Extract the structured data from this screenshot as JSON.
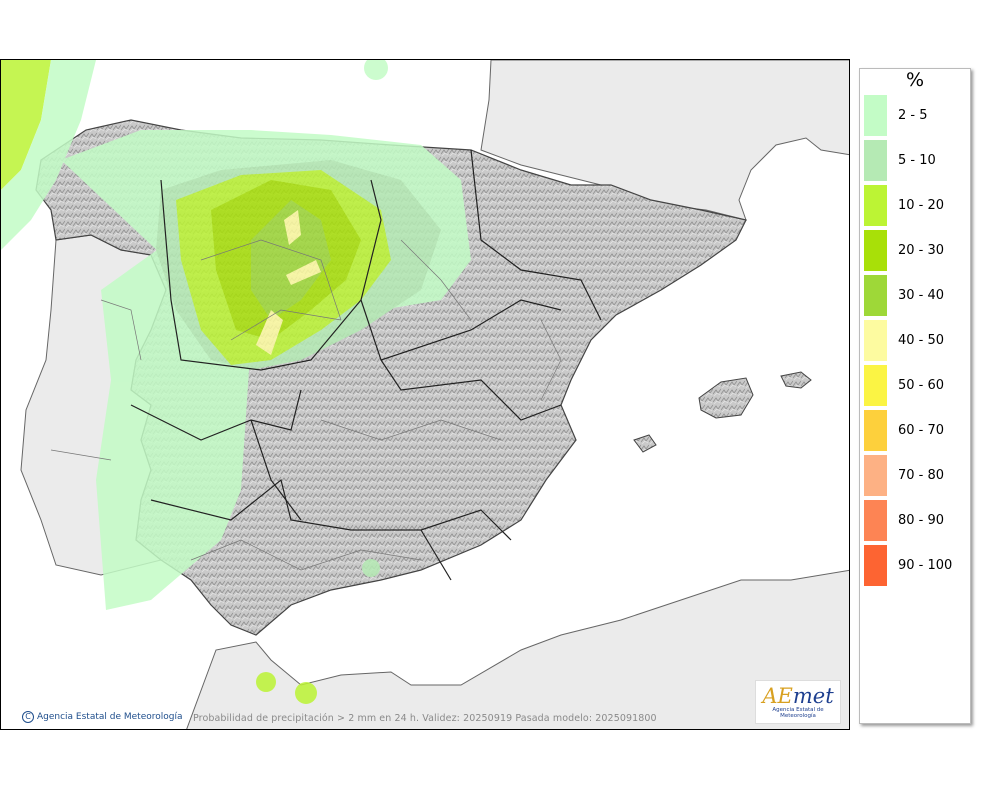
{
  "legend": {
    "unit": "%",
    "items": [
      {
        "label": "2 - 5",
        "color": "#c3fcc6"
      },
      {
        "label": "5 - 10",
        "color": "#b5eab4"
      },
      {
        "label": "10 - 20",
        "color": "#bcf434"
      },
      {
        "label": "20 - 30",
        "color": "#a8e008"
      },
      {
        "label": "30 - 40",
        "color": "#9ed838"
      },
      {
        "label": "40 - 50",
        "color": "#fdfba0"
      },
      {
        "label": "50 - 60",
        "color": "#fbf444"
      },
      {
        "label": "60 - 70",
        "color": "#fdd03c"
      },
      {
        "label": "70 - 80",
        "color": "#fdb184"
      },
      {
        "label": "80 - 90",
        "color": "#fd8454"
      },
      {
        "label": "90 - 100",
        "color": "#fd6432"
      }
    ]
  },
  "footer": {
    "credit": "Agencia Estatal de Meteorología",
    "caption": "Probabilidad de precipitación > 2 mm en 24 h. Validez: 20250919 Pasada modelo: 2025091800"
  },
  "logo": {
    "text_a": "A",
    "text_e": "E",
    "text_rest": "met",
    "subtitle": "Agencia Estatal de Meteorología"
  }
}
